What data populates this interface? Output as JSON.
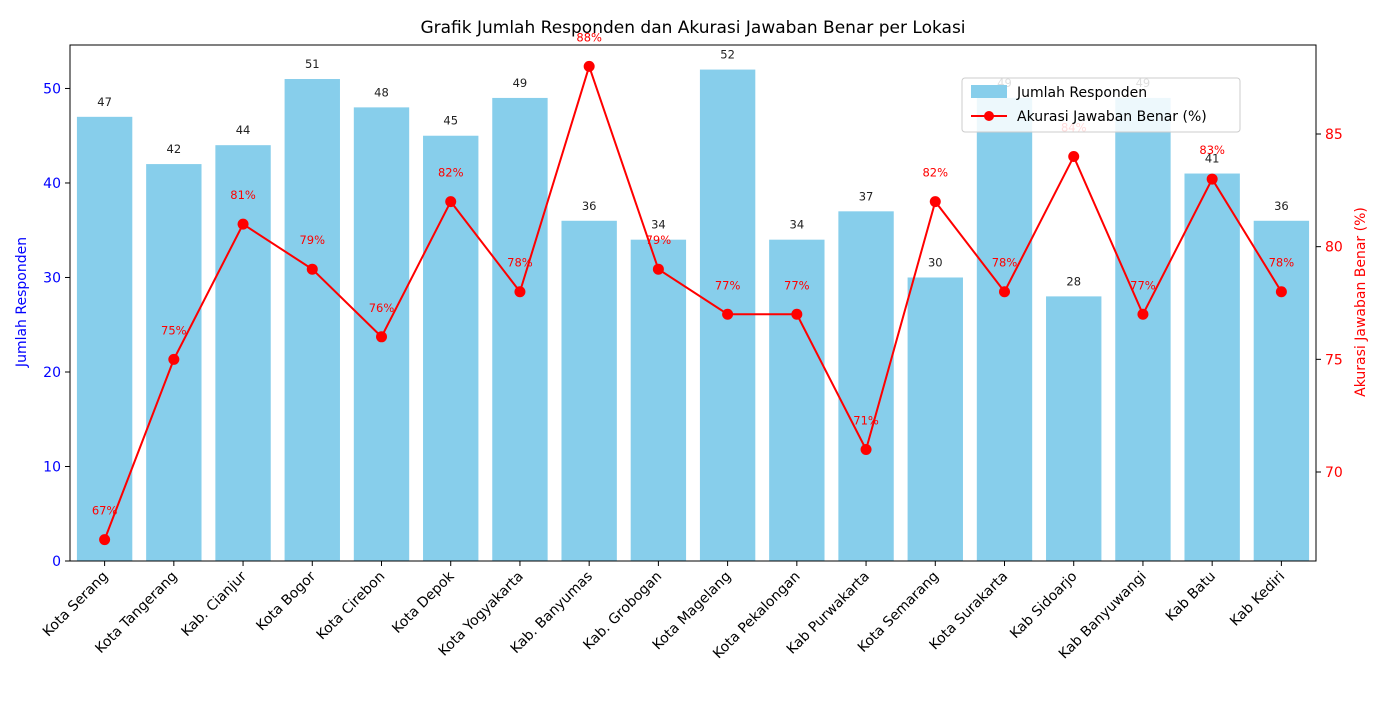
{
  "chart_data": {
    "type": "bar",
    "title": "Grafik Jumlah Responden dan Akurasi Jawaban Benar per Lokasi",
    "categories": [
      "Kota Serang",
      "Kota Tangerang",
      "Kab. Cianjur",
      "Kota Bogor",
      "Kota Cirebon",
      "Kota Depok",
      "Kota Yogyakarta",
      "Kab. Banyumas",
      "Kab. Grobogan",
      "Kota Magelang",
      "Kota Pekalongan",
      "Kab Purwakarta",
      "Kota Semarang",
      "Kota Surakarta",
      "Kab Sidoarjo",
      "Kab Banyuwangi",
      "Kab Batu",
      "Kab Kediri"
    ],
    "series": [
      {
        "name": "Jumlah Responden",
        "kind": "bar",
        "axis": "left",
        "color": "#87ceeb",
        "values": [
          47,
          42,
          44,
          51,
          48,
          45,
          49,
          36,
          34,
          52,
          34,
          37,
          30,
          49,
          28,
          49,
          41,
          36
        ],
        "labels": [
          "47",
          "42",
          "44",
          "51",
          "48",
          "45",
          "49",
          "36",
          "34",
          "52",
          "34",
          "37",
          "30",
          "49",
          "28",
          "49",
          "41",
          "36"
        ]
      },
      {
        "name": "Akurasi Jawaban Benar (%)",
        "kind": "line",
        "axis": "right",
        "color": "#ff0000",
        "values": [
          67,
          75,
          81,
          79,
          76,
          82,
          78,
          88,
          79,
          77,
          77,
          71,
          82,
          78,
          84,
          77,
          83,
          78
        ],
        "labels": [
          "67%",
          "75%",
          "81%",
          "79%",
          "76%",
          "82%",
          "78%",
          "88%",
          "79%",
          "77%",
          "77%",
          "71%",
          "82%",
          "78%",
          "84%",
          "77%",
          "83%",
          "78%"
        ]
      }
    ],
    "ylabel": "Jumlah Responden",
    "ylabel_right": "Akurasi Jawaban Benar (%)",
    "ylim": [
      0,
      54.6
    ],
    "ylim_right": [
      66.05,
      88.95
    ],
    "yticks": [
      "0",
      "10",
      "20",
      "30",
      "40",
      "50"
    ],
    "yticks_right": [
      "70",
      "75",
      "80",
      "85"
    ],
    "grid": false,
    "legend": "top-right",
    "colors": {
      "left_axis": "#0000ff",
      "right_axis": "#ff0000"
    }
  }
}
